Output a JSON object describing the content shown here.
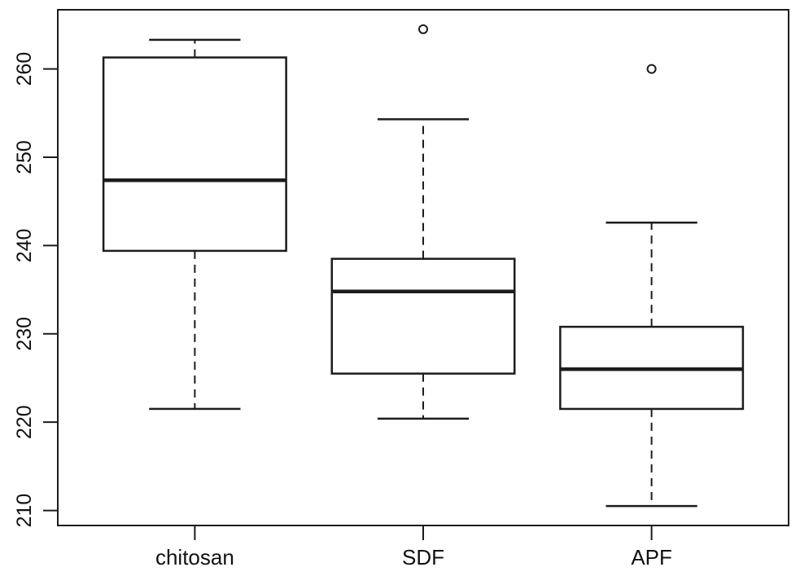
{
  "chart_data": {
    "type": "boxplot",
    "title": "",
    "xlabel": "",
    "ylabel": "",
    "categories": [
      "chitosan",
      "SDF",
      "APF"
    ],
    "series": [
      {
        "name": "chitosan",
        "whisker_low": 221.5,
        "q1": 239.4,
        "median": 247.4,
        "q3": 261.3,
        "whisker_high": 263.3,
        "outliers": []
      },
      {
        "name": "SDF",
        "whisker_low": 220.4,
        "q1": 225.5,
        "median": 234.8,
        "q3": 238.5,
        "whisker_high": 254.3,
        "outliers": [
          264.5
        ]
      },
      {
        "name": "APF",
        "whisker_low": 210.5,
        "q1": 221.5,
        "median": 226.0,
        "q3": 230.8,
        "whisker_high": 242.6,
        "outliers": [
          260.0
        ]
      }
    ],
    "y_ticks": [
      210,
      220,
      230,
      240,
      250,
      260
    ],
    "ylim": [
      208.3,
      266.7
    ],
    "grid": false,
    "legend": "none",
    "colors": {
      "line": "#1c1c1c",
      "background": "#ffffff",
      "text": "#111111"
    }
  }
}
